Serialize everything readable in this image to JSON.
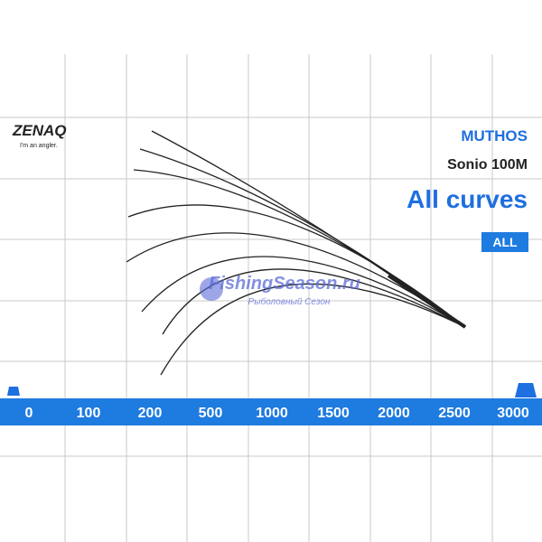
{
  "brand": {
    "name": "ZENAQ",
    "tagline": "I'm an angler."
  },
  "series": "MUTHOS",
  "model": "Sonio 100M",
  "title": "All curves",
  "button": "ALL",
  "scale": {
    "labels": [
      "0",
      "100",
      "200",
      "500",
      "1000",
      "1500",
      "2000",
      "2500",
      "3000"
    ]
  },
  "watermark": {
    "site": "FishingSeason.ru",
    "subtitle": "Рыболовный Сезон"
  }
}
